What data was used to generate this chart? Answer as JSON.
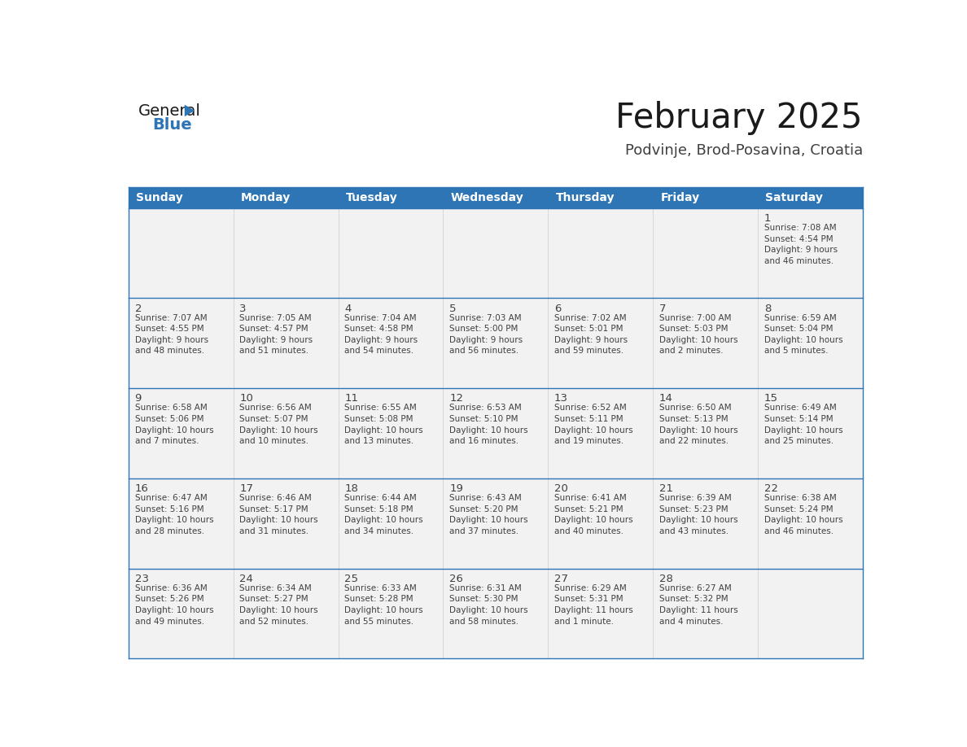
{
  "title": "February 2025",
  "subtitle": "Podvinje, Brod-Posavina, Croatia",
  "days_of_week": [
    "Sunday",
    "Monday",
    "Tuesday",
    "Wednesday",
    "Thursday",
    "Friday",
    "Saturday"
  ],
  "header_bg": "#2E75B6",
  "header_text": "#FFFFFF",
  "cell_bg": "#F2F2F2",
  "border_color": "#2E75B6",
  "text_color": "#404040",
  "day_num_color": "#404040",
  "title_color": "#1a1a1a",
  "subtitle_color": "#404040",
  "logo_general_color": "#1a1a1a",
  "logo_blue_color": "#2E75B6",
  "calendar_data": [
    [
      {
        "day": null,
        "info": ""
      },
      {
        "day": null,
        "info": ""
      },
      {
        "day": null,
        "info": ""
      },
      {
        "day": null,
        "info": ""
      },
      {
        "day": null,
        "info": ""
      },
      {
        "day": null,
        "info": ""
      },
      {
        "day": 1,
        "info": "Sunrise: 7:08 AM\nSunset: 4:54 PM\nDaylight: 9 hours\nand 46 minutes."
      }
    ],
    [
      {
        "day": 2,
        "info": "Sunrise: 7:07 AM\nSunset: 4:55 PM\nDaylight: 9 hours\nand 48 minutes."
      },
      {
        "day": 3,
        "info": "Sunrise: 7:05 AM\nSunset: 4:57 PM\nDaylight: 9 hours\nand 51 minutes."
      },
      {
        "day": 4,
        "info": "Sunrise: 7:04 AM\nSunset: 4:58 PM\nDaylight: 9 hours\nand 54 minutes."
      },
      {
        "day": 5,
        "info": "Sunrise: 7:03 AM\nSunset: 5:00 PM\nDaylight: 9 hours\nand 56 minutes."
      },
      {
        "day": 6,
        "info": "Sunrise: 7:02 AM\nSunset: 5:01 PM\nDaylight: 9 hours\nand 59 minutes."
      },
      {
        "day": 7,
        "info": "Sunrise: 7:00 AM\nSunset: 5:03 PM\nDaylight: 10 hours\nand 2 minutes."
      },
      {
        "day": 8,
        "info": "Sunrise: 6:59 AM\nSunset: 5:04 PM\nDaylight: 10 hours\nand 5 minutes."
      }
    ],
    [
      {
        "day": 9,
        "info": "Sunrise: 6:58 AM\nSunset: 5:06 PM\nDaylight: 10 hours\nand 7 minutes."
      },
      {
        "day": 10,
        "info": "Sunrise: 6:56 AM\nSunset: 5:07 PM\nDaylight: 10 hours\nand 10 minutes."
      },
      {
        "day": 11,
        "info": "Sunrise: 6:55 AM\nSunset: 5:08 PM\nDaylight: 10 hours\nand 13 minutes."
      },
      {
        "day": 12,
        "info": "Sunrise: 6:53 AM\nSunset: 5:10 PM\nDaylight: 10 hours\nand 16 minutes."
      },
      {
        "day": 13,
        "info": "Sunrise: 6:52 AM\nSunset: 5:11 PM\nDaylight: 10 hours\nand 19 minutes."
      },
      {
        "day": 14,
        "info": "Sunrise: 6:50 AM\nSunset: 5:13 PM\nDaylight: 10 hours\nand 22 minutes."
      },
      {
        "day": 15,
        "info": "Sunrise: 6:49 AM\nSunset: 5:14 PM\nDaylight: 10 hours\nand 25 minutes."
      }
    ],
    [
      {
        "day": 16,
        "info": "Sunrise: 6:47 AM\nSunset: 5:16 PM\nDaylight: 10 hours\nand 28 minutes."
      },
      {
        "day": 17,
        "info": "Sunrise: 6:46 AM\nSunset: 5:17 PM\nDaylight: 10 hours\nand 31 minutes."
      },
      {
        "day": 18,
        "info": "Sunrise: 6:44 AM\nSunset: 5:18 PM\nDaylight: 10 hours\nand 34 minutes."
      },
      {
        "day": 19,
        "info": "Sunrise: 6:43 AM\nSunset: 5:20 PM\nDaylight: 10 hours\nand 37 minutes."
      },
      {
        "day": 20,
        "info": "Sunrise: 6:41 AM\nSunset: 5:21 PM\nDaylight: 10 hours\nand 40 minutes."
      },
      {
        "day": 21,
        "info": "Sunrise: 6:39 AM\nSunset: 5:23 PM\nDaylight: 10 hours\nand 43 minutes."
      },
      {
        "day": 22,
        "info": "Sunrise: 6:38 AM\nSunset: 5:24 PM\nDaylight: 10 hours\nand 46 minutes."
      }
    ],
    [
      {
        "day": 23,
        "info": "Sunrise: 6:36 AM\nSunset: 5:26 PM\nDaylight: 10 hours\nand 49 minutes."
      },
      {
        "day": 24,
        "info": "Sunrise: 6:34 AM\nSunset: 5:27 PM\nDaylight: 10 hours\nand 52 minutes."
      },
      {
        "day": 25,
        "info": "Sunrise: 6:33 AM\nSunset: 5:28 PM\nDaylight: 10 hours\nand 55 minutes."
      },
      {
        "day": 26,
        "info": "Sunrise: 6:31 AM\nSunset: 5:30 PM\nDaylight: 10 hours\nand 58 minutes."
      },
      {
        "day": 27,
        "info": "Sunrise: 6:29 AM\nSunset: 5:31 PM\nDaylight: 11 hours\nand 1 minute."
      },
      {
        "day": 28,
        "info": "Sunrise: 6:27 AM\nSunset: 5:32 PM\nDaylight: 11 hours\nand 4 minutes."
      },
      {
        "day": null,
        "info": ""
      }
    ]
  ]
}
